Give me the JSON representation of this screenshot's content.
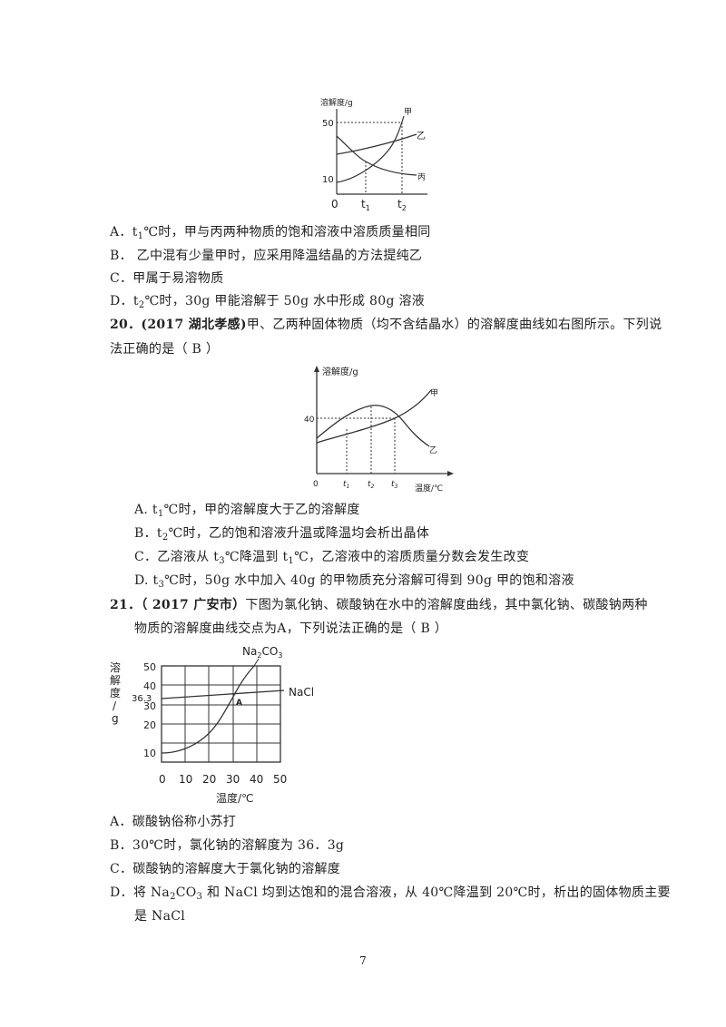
{
  "q19": {
    "chart": {
      "ylabel": "溶解度/g",
      "yticks": [
        "50",
        "10"
      ],
      "xticks": [
        "0",
        "t",
        "t"
      ],
      "xtick_subs": [
        "",
        "1",
        "2"
      ],
      "labels": [
        "甲",
        "乙",
        "丙"
      ]
    },
    "options": [
      {
        "pre": "A．t",
        "sub": "1",
        "post": "℃时，甲与丙两种物质的饱和溶液中溶质质量相同"
      },
      {
        "pre": "B．  乙中混有少量甲时，应采用降温结晶的方法提纯乙",
        "sub": "",
        "post": ""
      },
      {
        "pre": "C．甲属于易溶物质",
        "sub": "",
        "post": ""
      },
      {
        "pre": "D．t",
        "sub": "2",
        "post": "℃时，30g 甲能溶解于 50g 水中形成 80g 溶液"
      }
    ]
  },
  "q20": {
    "number": "20．",
    "source": "(2017 湖北孝感)",
    "stem1": "甲、乙两种固体物质（均不含结晶水）的溶解度曲线如右图所示。下列说",
    "stem2": "法正确的是（   B   ）",
    "chart": {
      "ylabel": "溶解度/g",
      "ytick": "40",
      "xticks": [
        "0",
        "t",
        "t",
        "t"
      ],
      "xtick_subs": [
        "",
        "1",
        "2",
        "3"
      ],
      "xlabel": "温度/℃",
      "labels": [
        "甲",
        "乙"
      ]
    },
    "options": [
      {
        "pre": "A.   t",
        "sub": "1",
        "post": "℃时，甲的溶解度大于乙的溶解度"
      },
      {
        "pre": "B．t",
        "sub": "2",
        "post": "℃时，乙的饱和溶液升温或降温均会析出晶体"
      },
      {
        "pre": "C．乙溶液从 t",
        "sub": "3",
        "post": "℃降温到 t",
        "sub2": "1",
        "post2": "℃，乙溶液中的溶质质量分数会发生改变"
      },
      {
        "pre": "D.   t",
        "sub": "3",
        "post": "℃时，50g 水中加入 40g 的甲物质充分溶解可得到 90g 甲的饱和溶液"
      }
    ]
  },
  "q21": {
    "number": "21．",
    "source": "（ 2017 广安市）",
    "stem1": "下图为氯化钠、碳酸钠在水中的溶解度曲线，其中氯化钠、碳酸钠两种",
    "stem2": "物质的溶解度曲线交点为A，下列说法正确的是（   B   ）",
    "chart": {
      "ylabel_chars": [
        "溶",
        "解",
        "度",
        "/",
        "g"
      ],
      "yticks": [
        "50",
        "40",
        "36.3",
        "30",
        "20",
        "10"
      ],
      "xticks": [
        "0",
        "10",
        "20",
        "30",
        "40",
        "50"
      ],
      "xlabel": "温度/℃",
      "na2co3_label": "Na2CO3",
      "nacl_label": "NaCl",
      "point_label": "A"
    },
    "options": [
      {
        "pre": "A．碳酸钠俗称小苏打",
        "sub": "",
        "post": ""
      },
      {
        "pre": "B．30℃时，氯化钠的溶解度为 36．3g",
        "sub": "",
        "post": ""
      },
      {
        "pre": "C．碳酸钠的溶解度大于氯化钠的溶解度",
        "sub": "",
        "post": ""
      }
    ],
    "optD_line1_a": "D．将 Na",
    "optD_line1_sub1": "2",
    "optD_line1_b": "CO",
    "optD_line1_sub2": "3",
    "optD_line1_c": " 和 NaCl 均到达饱和的混合溶液，从 40℃降温到 20℃时，析出的固体物质主要",
    "optD_line2": "是 NaCl"
  },
  "page_number": "7"
}
